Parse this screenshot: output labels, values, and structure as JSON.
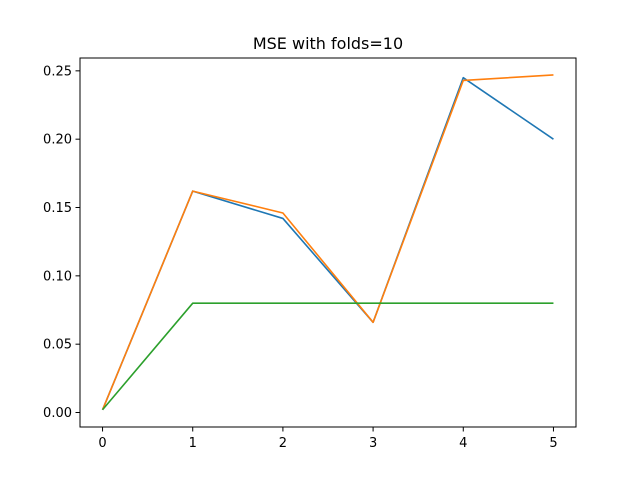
{
  "chart_data": {
    "type": "line",
    "title": "MSE with folds=10",
    "xlabel": "",
    "ylabel": "",
    "x": [
      0,
      1,
      2,
      3,
      4,
      5
    ],
    "xlim": [
      -0.25,
      5.25
    ],
    "ylim": [
      -0.0106,
      0.2594
    ],
    "xticks": [
      0,
      1,
      2,
      3,
      4,
      5
    ],
    "yticks": [
      0.0,
      0.05,
      0.1,
      0.15,
      0.2,
      0.25
    ],
    "ytick_labels": [
      "0.00",
      "0.05",
      "0.10",
      "0.15",
      "0.20",
      "0.25"
    ],
    "grid": false,
    "legend": "none",
    "series": [
      {
        "color": "#1f77b4",
        "values": [
          0.002,
          0.162,
          0.142,
          0.066,
          0.245,
          0.2
        ]
      },
      {
        "color": "#ff7f0e",
        "values": [
          0.002,
          0.162,
          0.146,
          0.066,
          0.243,
          0.247
        ]
      },
      {
        "color": "#2ca02c",
        "values": [
          0.002,
          0.08,
          0.08,
          0.08,
          0.08,
          0.08
        ]
      }
    ]
  }
}
